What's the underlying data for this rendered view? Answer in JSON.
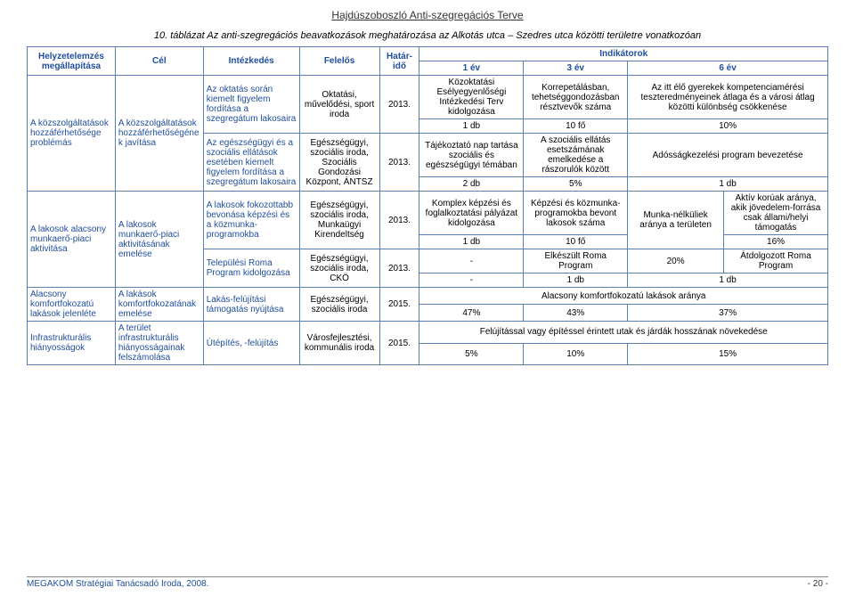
{
  "colors": {
    "header_text": "#1f4e9c",
    "border": "#5b7fb5",
    "body_text": "#000000",
    "footer_line": "#888888"
  },
  "font_sizes": {
    "doc_title": 12,
    "table_title": 11,
    "cell": 10,
    "footer": 10
  },
  "doc_title": "Hajdúszoboszló Anti-szegregációs Terve",
  "table_title": "10. táblázat Az anti-szegregációs beavatkozások meghatározása az Alkotás utca – Szedres utca közötti területre vonatkozóan",
  "header": {
    "c1": "Helyzetelemzés megállapítása",
    "c2": "Cél",
    "c3": "Intézkedés",
    "c4": "Felelős",
    "c5": "Határ-idő",
    "ind": "Indikátorok",
    "y1": "1 év",
    "y3": "3 év",
    "y6": "6 év"
  },
  "r1": {
    "helyzet": "A közszolgáltatások hozzáférhetősége problémás",
    "cel": "A közszolgáltatások hozzáférhetőségének javítása",
    "intez": "Az oktatás során kiemelt figyelem fordítása a szegregátum lakosaira",
    "felelos": "Oktatási, művelődési, sport iroda",
    "hatar": "2013.",
    "i1": "Közoktatási Esélyegyenlőségi Intézkedési Terv kidolgozása",
    "i3": "Korrepetálásban, tehetséggondozásban résztvevők száma",
    "i6": "Az itt élő gyerekek kompetenciamérési teszteredményeinek átlaga és a városi átlag közötti különbség csökkenése"
  },
  "r2": {
    "i1": "1 db",
    "i3": "10 fő",
    "i6": "10%"
  },
  "r3": {
    "intez": "Az egészségügyi és a szociális ellátások esetében kiemelt figyelem fordítása a szegregátum lakosaira",
    "felelos": "Egészségügyi, szociális iroda, Szociális Gondozási Központ, ÁNTSZ",
    "hatar": "2013.",
    "i1": "Tájékoztató nap tartása szociális és egészségügyi témában",
    "i3": "A szociális ellátás esetszámának emelkedése a rászorulók között",
    "i6": "Adósságkezelési program bevezetése"
  },
  "r4": {
    "i1": "2 db",
    "i3": "5%",
    "i6": "1 db"
  },
  "r5": {
    "helyzet": "A lakosok alacsony munkaerő-piaci aktivitása",
    "cel": "A lakosok munkaerő-piaci aktivitásának emelése",
    "intez": "A lakosok fokozottabb bevonása képzési és a közmunka-programokba",
    "felelos": "Egészségügyi, szociális iroda, Munkaügyi Kirendeltség",
    "hatar": "2013.",
    "i1": "Komplex képzési és foglalkoztatási pályázat kidolgozása",
    "i3": "Képzési és közmunka-programokba bevont lakosok száma",
    "i6a": "Munka-nélküliek aránya a területen",
    "i6b": "Aktív korúak aránya, akik jövedelem-forrása csak állami/helyi támogatás"
  },
  "r6": {
    "i1": "1 db",
    "i3": "10 fő",
    "i6a": "20%",
    "i6b": "16%"
  },
  "r7": {
    "intez": "Települési Roma Program kidolgozása",
    "felelos": "Egészségügyi, szociális iroda, CKÖ",
    "hatar": "2013.",
    "i1": "-",
    "i3": "Elkészült Roma Program",
    "i6": "Átdolgozott Roma Program"
  },
  "r8": {
    "i1": "-",
    "i3": "1 db",
    "i6": "1 db"
  },
  "r9": {
    "helyzet": "Alacsony komfortfokozatú lakások jelenléte",
    "cel": "A lakások komfortfokozatának emelése",
    "intez": "Lakás-felújítási támogatás nyújtása",
    "felelos": "Egészségügyi, szociális iroda",
    "hatar": "2015.",
    "merged": "Alacsony komfortfokozatú lakások aránya",
    "i1": "47%",
    "i3": "43%",
    "i6": "37%"
  },
  "r10": {
    "helyzet": "Infrastrukturális hiányosságok",
    "cel": "A terület infrastrukturális hiányosságainak felszámolása",
    "intez": "Útépítés, -felújítás",
    "felelos": "Városfejlesztési, kommunális iroda",
    "hatar": "2015.",
    "merged": "Felújítással vagy építéssel érintett utak és járdák hosszának növekedése",
    "i1": "5%",
    "i3": "10%",
    "i6": "15%"
  },
  "footer": {
    "left": "MEGAKOM Stratégiai Tanácsadó Iroda, 2008.",
    "right": "- 20 -"
  }
}
